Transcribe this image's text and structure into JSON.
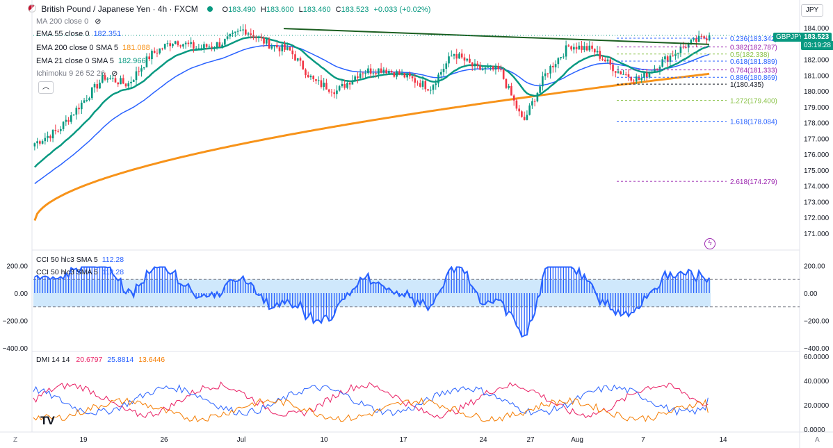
{
  "header": {
    "symbol_title": "British Pound / Japanese Yen · 4h · FXCM",
    "open_label": "O",
    "open": "183.490",
    "high_label": "H",
    "high": "183.600",
    "low_label": "L",
    "low": "183.460",
    "close_label": "C",
    "close": "183.523",
    "change": "+0.033 (+0.02%)",
    "currency_badge": "JPY"
  },
  "legend": {
    "ma200": {
      "label": "MA 200 close 0",
      "value": ""
    },
    "ema55": {
      "label": "EMA 55 close 0",
      "value": "182.351",
      "color": "#2962ff"
    },
    "ema200": {
      "label": "EMA 200 close 0 SMA 5",
      "value": "181.088",
      "color": "#f7931a"
    },
    "ema21": {
      "label": "EMA 21 close 0 SMA 5",
      "value": "182.966",
      "color": "#089981"
    },
    "ichimoku": {
      "label": "Ichimoku 9 26 52 26"
    }
  },
  "price_tags": {
    "symbol_tag": "GBPJPY",
    "price": "183.523",
    "countdown": "03:19:28"
  },
  "fib_levels": [
    {
      "label": "0.236(183.342)",
      "price": 183.342,
      "color": "#2962ff"
    },
    {
      "label": "0.382(182.787)",
      "price": 182.787,
      "color": "#9c27b0"
    },
    {
      "label": "0.5(182.338)",
      "price": 182.338,
      "color": "#8bc34a"
    },
    {
      "label": "0.618(181.889)",
      "price": 181.889,
      "color": "#2962ff"
    },
    {
      "label": "0.764(181.333)",
      "price": 181.333,
      "color": "#9c27b0"
    },
    {
      "label": "0.886(180.869)",
      "price": 180.869,
      "color": "#2962ff"
    },
    {
      "label": "1(180.435)",
      "price": 180.435,
      "color": "#131722"
    },
    {
      "label": "1.272(179.400)",
      "price": 179.4,
      "color": "#8bc34a"
    },
    {
      "label": "1.618(178.084)",
      "price": 178.084,
      "color": "#2962ff"
    },
    {
      "label": "2.618(174.279)",
      "price": 174.279,
      "color": "#9c27b0"
    }
  ],
  "price_axis": [
    "184.000",
    "183.000",
    "182.000",
    "181.000",
    "180.000",
    "179.000",
    "178.000",
    "177.000",
    "176.000",
    "175.000",
    "174.000",
    "173.000",
    "172.000",
    "171.000"
  ],
  "cci_axis": [
    "200.00",
    "0.00",
    "−200.00",
    "−400.00"
  ],
  "dmi_axis": [
    "60.0000",
    "40.0000",
    "20.0000",
    "0.0000"
  ],
  "time_axis": [
    "19",
    "26",
    "Jul",
    "10",
    "17",
    "24",
    "27",
    "Aug",
    "7",
    "14"
  ],
  "cci": {
    "label1": "CCI 50 hlc3 SMA 5",
    "value1": "112.28",
    "label2": "CCI 50 hlc3 SMA 5",
    "value2": "112.28",
    "color": "#2962ff"
  },
  "dmi": {
    "label": "DMI 14 14",
    "plus_di": "20.6797",
    "minus_di": "25.8814",
    "adx": "13.6446",
    "plus_color": "#e91e63",
    "minus_color": "#2962ff",
    "adx_color": "#f57c00"
  },
  "bottom": {
    "left_icon": "Z",
    "right_icon": "A"
  },
  "chart_data": {
    "type": "candlestick",
    "title": "British Pound / Japanese Yen · 4h · FXCM",
    "ylim": [
      170.6,
      184.8
    ],
    "x_ticks": [
      "19",
      "26",
      "Jul",
      "10",
      "17",
      "24",
      "27",
      "Aug",
      "7",
      "14"
    ],
    "close_path": [
      [
        176.7,
        "start"
      ],
      [
        177.5,
        ""
      ],
      [
        179.2,
        "19"
      ],
      [
        180.9,
        ""
      ],
      [
        180.4,
        ""
      ],
      [
        182.3,
        "26"
      ],
      [
        183.2,
        ""
      ],
      [
        182.7,
        ""
      ],
      [
        183.0,
        "Jul"
      ],
      [
        183.9,
        ""
      ],
      [
        183.0,
        ""
      ],
      [
        182.5,
        "10"
      ],
      [
        180.6,
        ""
      ],
      [
        180.0,
        ""
      ],
      [
        181.2,
        "17"
      ],
      [
        181.4,
        ""
      ],
      [
        180.9,
        ""
      ],
      [
        180.2,
        ""
      ],
      [
        182.4,
        "24"
      ],
      [
        181.4,
        ""
      ],
      [
        181.3,
        "27"
      ],
      [
        178.0,
        ""
      ],
      [
        181.2,
        ""
      ],
      [
        182.9,
        "Aug"
      ],
      [
        182.6,
        ""
      ],
      [
        181.3,
        ""
      ],
      [
        180.7,
        "7"
      ],
      [
        181.9,
        ""
      ],
      [
        182.9,
        ""
      ],
      [
        183.5,
        "last"
      ]
    ],
    "series": [
      {
        "name": "EMA 21 close 0 SMA 5",
        "last": 182.966
      },
      {
        "name": "EMA 55 close 0",
        "last": 182.351
      },
      {
        "name": "EMA 200 close 0 SMA 5",
        "last": 181.088
      }
    ],
    "trendline": {
      "from": 183.95,
      "to": 182.95
    }
  }
}
